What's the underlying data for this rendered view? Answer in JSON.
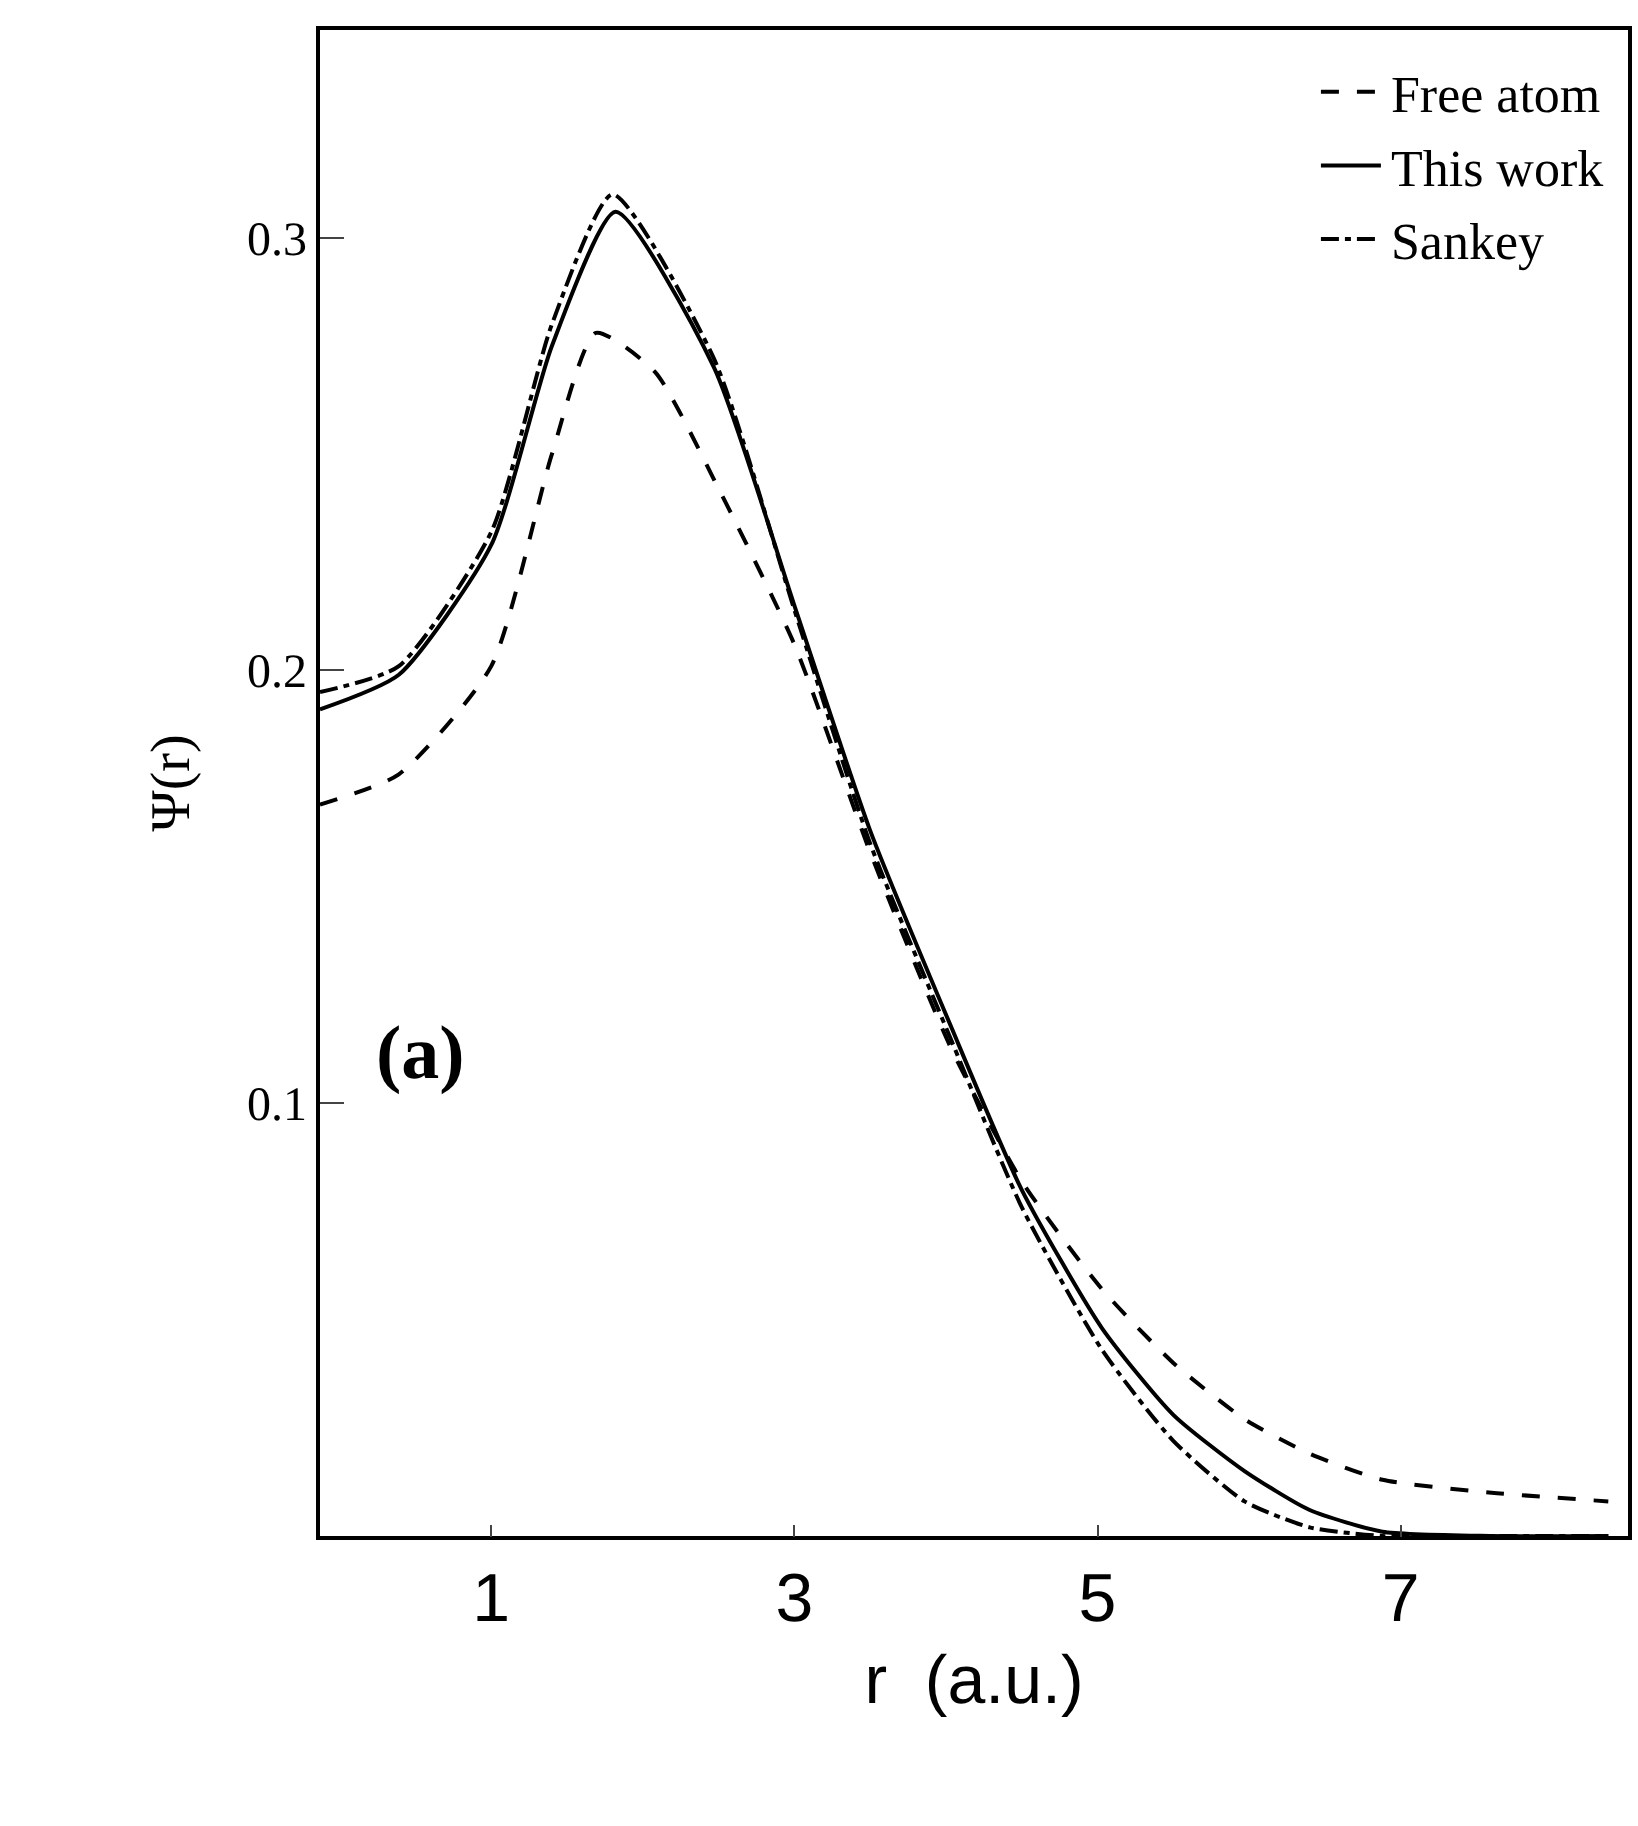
{
  "chart_data": {
    "type": "line",
    "xlabel": "r  (a.u.)",
    "ylabel": "Ψ(r)",
    "xlim": [
      -0.13,
      8.5
    ],
    "ylim": [
      0,
      0.348
    ],
    "xticks": [
      1,
      3,
      5,
      7
    ],
    "yticks": [
      0.1,
      0.2,
      0.3
    ],
    "grid": false,
    "legend": "top right",
    "marker": "none",
    "annotations": [
      "(a)"
    ],
    "series": [
      {
        "name": "Free atom",
        "color": "#000000",
        "line_style": "dashed",
        "x": [
          -0.13,
          0.39,
          1,
          1.4,
          1.69,
          2.08,
          2.5,
          3,
          3.5,
          4.03,
          4.5,
          5.03,
          5.5,
          5.97,
          6.4,
          6.88,
          7.6,
          8.37
        ],
        "values": [
          0.169,
          0.176,
          0.201,
          0.25,
          0.278,
          0.269,
          0.242,
          0.206,
          0.158,
          0.113,
          0.082,
          0.057,
          0.04,
          0.027,
          0.019,
          0.013,
          0.01,
          0.008
        ]
      },
      {
        "name": "This work",
        "color": "#000000",
        "line_style": "solid",
        "x": [
          -0.13,
          0.39,
          1,
          1.4,
          1.82,
          2.47,
          3,
          3.5,
          4.03,
          4.5,
          5.03,
          5.5,
          5.97,
          6.4,
          6.88,
          7.6,
          8.37
        ],
        "values": [
          0.191,
          0.199,
          0.229,
          0.275,
          0.306,
          0.27,
          0.215,
          0.163,
          0.118,
          0.08,
          0.048,
          0.028,
          0.015,
          0.006,
          0.001,
          0,
          0
        ]
      },
      {
        "name": "Sankey",
        "color": "#000000",
        "line_style": "dashdot",
        "x": [
          -0.13,
          0.39,
          1,
          1.4,
          1.8,
          2.47,
          3,
          3.5,
          4.03,
          4.5,
          5.03,
          5.5,
          5.97,
          6.4,
          6.88,
          7.6,
          8.37
        ],
        "values": [
          0.195,
          0.201,
          0.232,
          0.28,
          0.31,
          0.272,
          0.214,
          0.16,
          0.115,
          0.076,
          0.043,
          0.022,
          0.008,
          0.002,
          0,
          0,
          0
        ]
      }
    ]
  }
}
